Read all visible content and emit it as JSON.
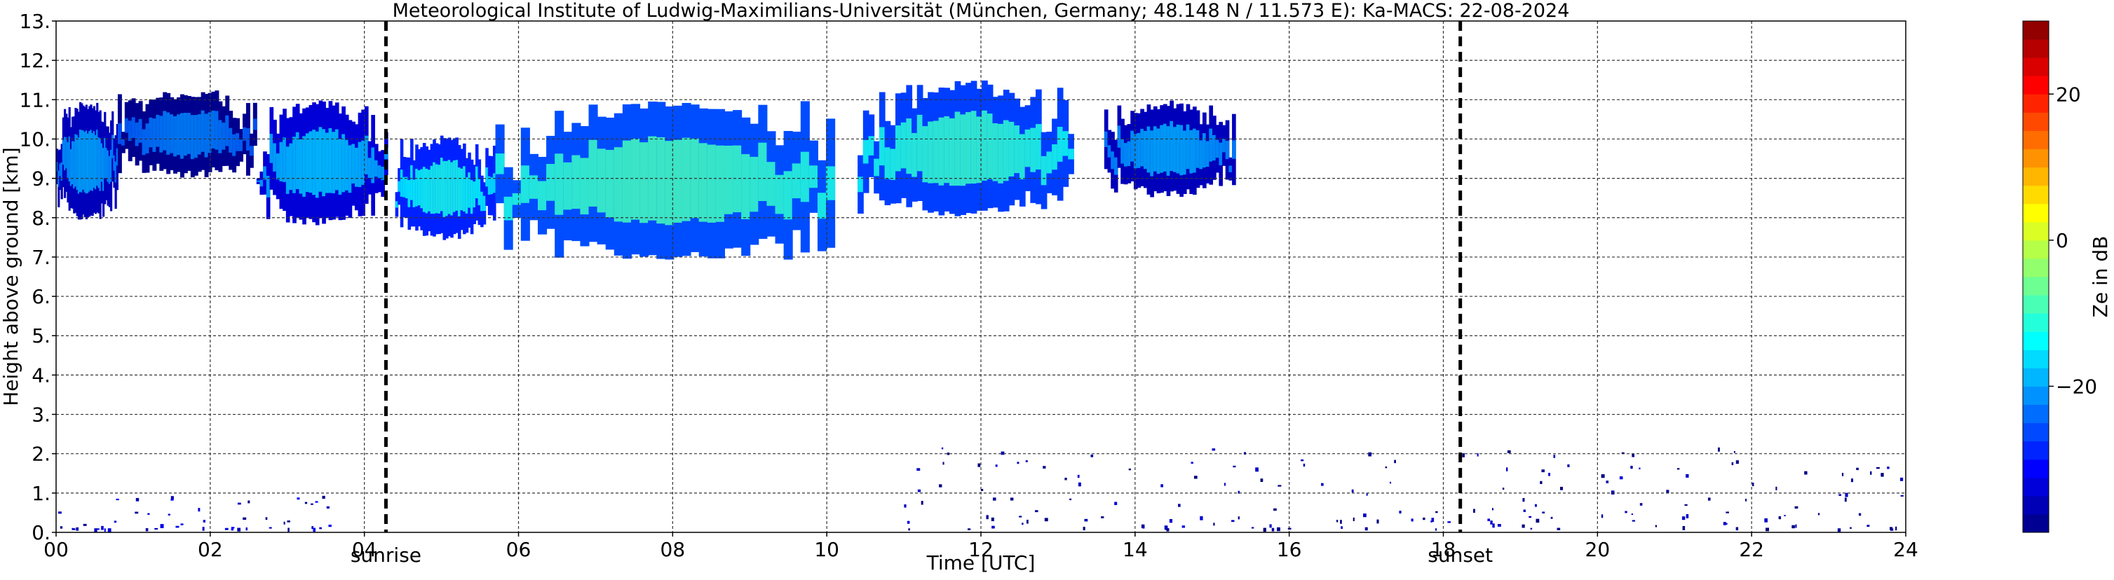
{
  "chart_data": {
    "type": "heatmap",
    "title": "Meteorological Institute of Ludwig-Maximilians-Universität (München, Germany; 48.148 N / 11.573 E):    Ka-MACS: 22-08-2024",
    "xlabel": "Time [UTC]",
    "ylabel": "Height above ground [km]",
    "xlim": [
      0,
      24
    ],
    "ylim": [
      0,
      13
    ],
    "x_ticks": [
      "00",
      "02",
      "04",
      "06",
      "08",
      "10",
      "12",
      "14",
      "16",
      "18",
      "20",
      "22",
      "24"
    ],
    "y_ticks": [
      "0.",
      "1.",
      "2.",
      "3.",
      "4.",
      "5.",
      "6.",
      "7.",
      "8.",
      "9.",
      "10.",
      "11.",
      "12.",
      "13."
    ],
    "grid": true,
    "events": [
      {
        "label": "sunrise",
        "x": 4.28
      },
      {
        "label": "sunset",
        "x": 18.22
      }
    ],
    "colorbar": {
      "label": "Ze in dB",
      "range": [
        -40,
        30
      ],
      "ticks": [
        "20",
        "0",
        "−20"
      ],
      "tick_values": [
        20,
        0,
        -20
      ],
      "colormap": "jet"
    },
    "cloud_layers": [
      {
        "t_start": 0.0,
        "t_end": 0.8,
        "base_km": 7.9,
        "top_km": 11.0,
        "ze_dB": -22
      },
      {
        "t_start": 0.8,
        "t_end": 2.6,
        "base_km": 9.0,
        "top_km": 11.3,
        "ze_dB": -25
      },
      {
        "t_start": 2.6,
        "t_end": 4.3,
        "base_km": 7.8,
        "top_km": 11.0,
        "ze_dB": -20
      },
      {
        "t_start": 4.4,
        "t_end": 5.7,
        "base_km": 7.4,
        "top_km": 10.1,
        "ze_dB": -15
      },
      {
        "t_start": 5.7,
        "t_end": 10.1,
        "base_km": 6.9,
        "top_km": 11.0,
        "ze_dB": -12
      },
      {
        "t_start": 10.4,
        "t_end": 13.2,
        "base_km": 8.0,
        "top_km": 11.5,
        "ze_dB": -13
      },
      {
        "t_start": 13.6,
        "t_end": 15.3,
        "base_km": 8.5,
        "top_km": 11.0,
        "ze_dB": -22
      }
    ],
    "low_level_echoes": [
      {
        "t_start": 0.0,
        "t_end": 3.6,
        "base_km": 0.1,
        "top_km": 1.0,
        "ze_dB": -35
      },
      {
        "t_start": 11.0,
        "t_end": 24.0,
        "base_km": 0.1,
        "top_km": 2.2,
        "ze_dB": -38
      }
    ]
  }
}
